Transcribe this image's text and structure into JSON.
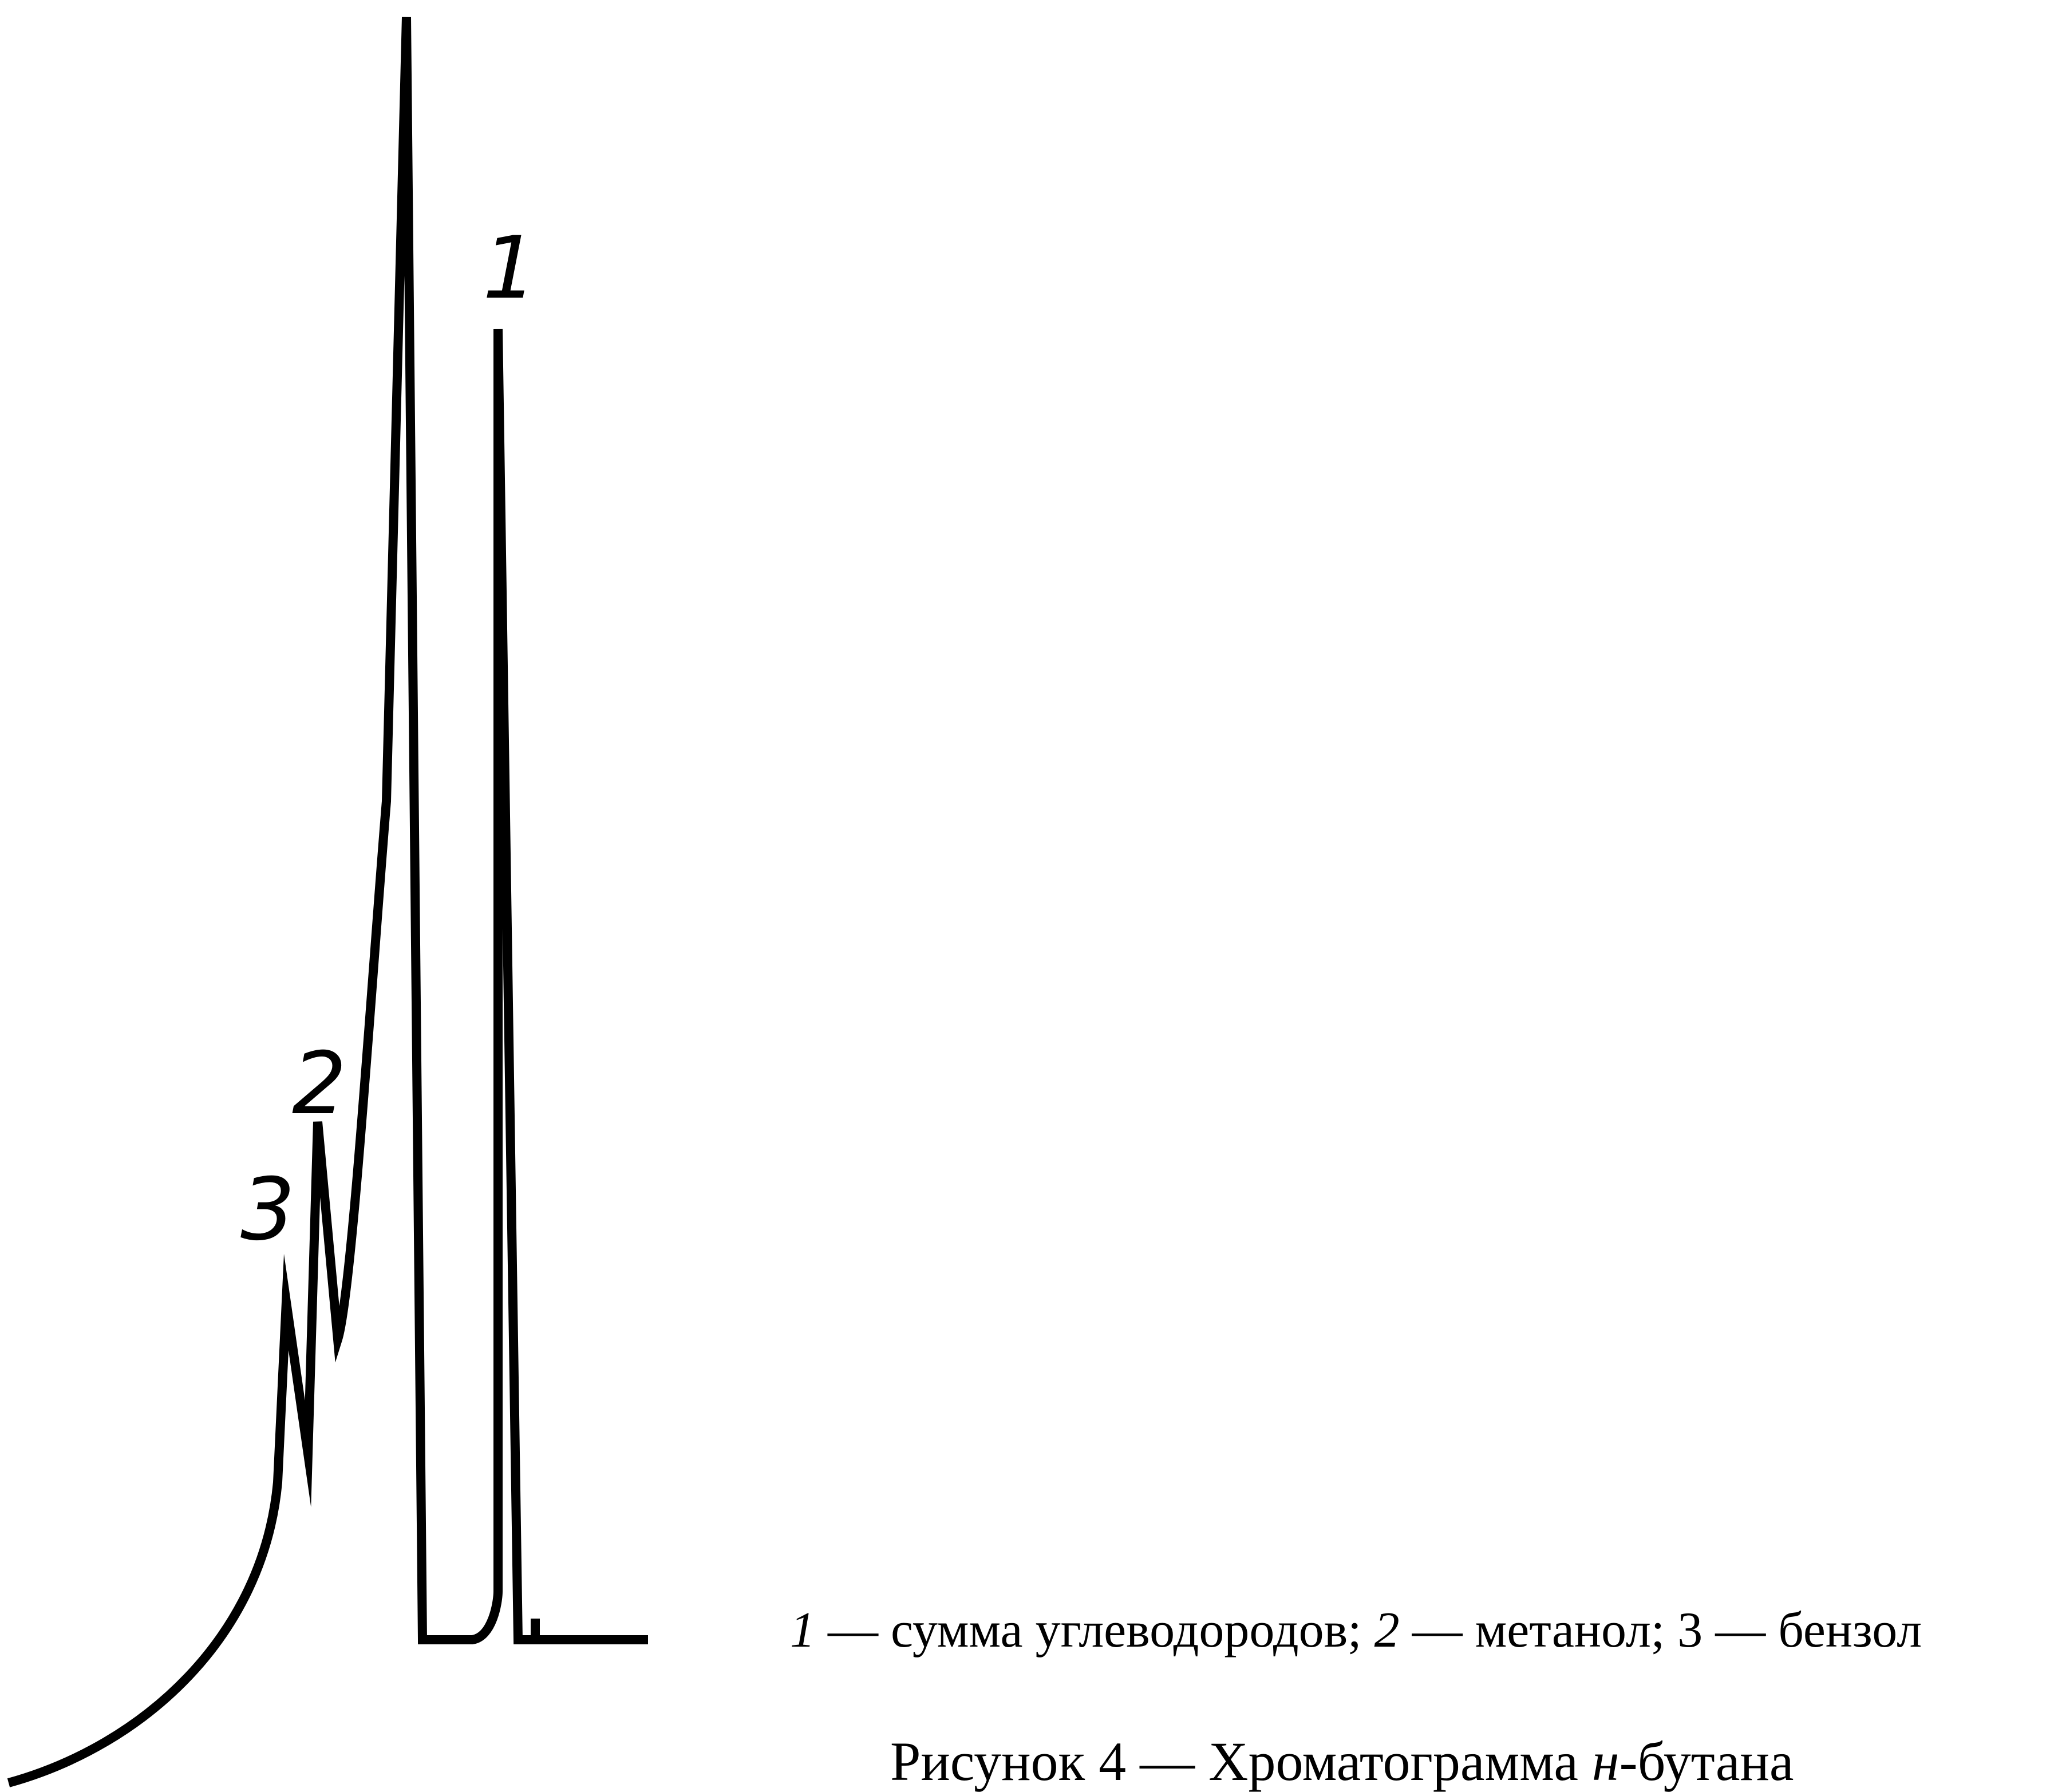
{
  "figure": {
    "peak_labels": [
      "1",
      "2",
      "3"
    ],
    "legend": [
      {
        "num": "1",
        "text": " — сумма углеводородов; "
      },
      {
        "num": "2",
        "text": " — метанол; 3 — бензол"
      }
    ],
    "caption": {
      "prefix": "Рисунок 4 — Хроматограмма ",
      "italic": "н",
      "suffix": "-бутана"
    }
  }
}
